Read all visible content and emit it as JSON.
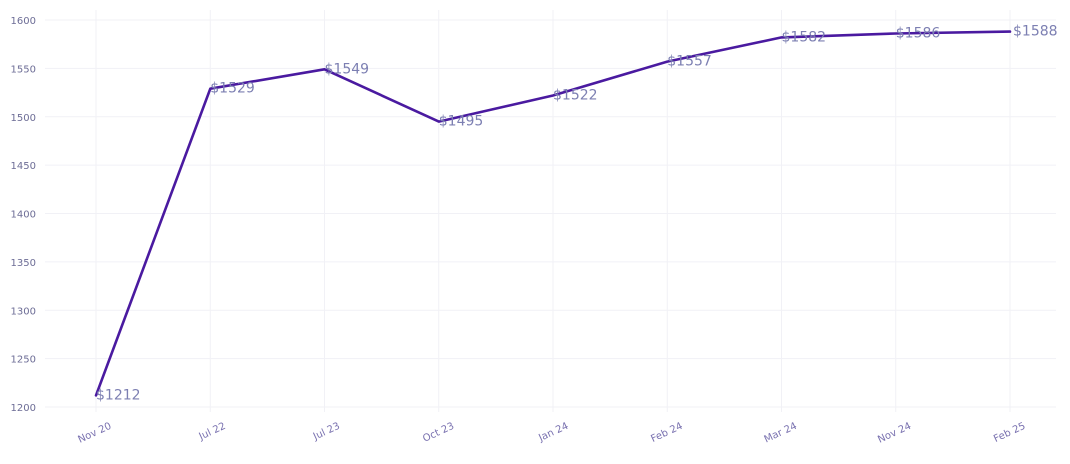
{
  "chart_data": {
    "type": "line",
    "x": [
      "Nov 20",
      "Jul 22",
      "Jul 23",
      "Oct 23",
      "Jan 24",
      "Feb 24",
      "Mar 24",
      "Nov 24",
      "Feb 25"
    ],
    "series": [
      {
        "values": [
          1212,
          1529,
          1549,
          1495,
          1522,
          1557,
          1582,
          1586,
          1588
        ],
        "labels": [
          "$1212",
          "$1529",
          "$1549",
          "$1495",
          "$1522",
          "$1557",
          "$1582",
          "$1586",
          "$1588"
        ]
      }
    ],
    "yticks": [
      1200,
      1250,
      1300,
      1350,
      1400,
      1450,
      1500,
      1550,
      1600
    ],
    "ylim": [
      1200,
      1600
    ],
    "grid": true,
    "colors": {
      "line": "#4a1aa0"
    }
  }
}
